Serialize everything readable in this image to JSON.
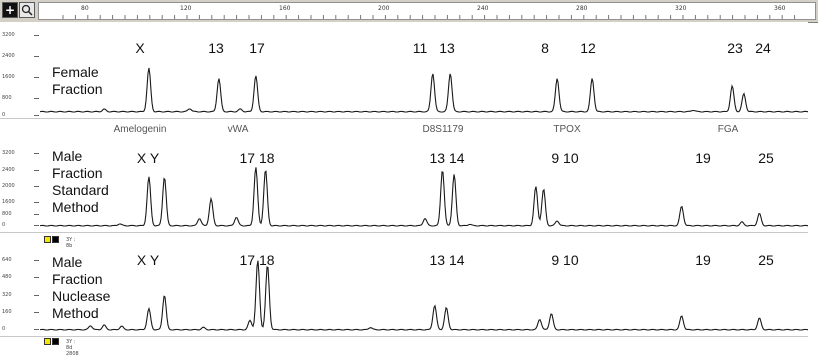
{
  "toolbar": {
    "plus_icon": "+",
    "zoom_icon": "magnifier-icon",
    "ruler_labels": [
      "80",
      "120",
      "160",
      "200",
      "240",
      "280",
      "320",
      "360"
    ]
  },
  "colors": {
    "trace": "#1a1a1a",
    "swatch_yellow": "#f4e600",
    "swatch_black": "#000000",
    "toolbar": "#d4d0c8"
  },
  "panels": [
    {
      "label": "Female\nFraction",
      "y_ticks": [
        "3200",
        "2400",
        "1600",
        "800",
        "0"
      ],
      "alleles": [
        "X",
        "13",
        "17",
        "11",
        "13",
        "8",
        "12",
        "23",
        "24"
      ],
      "max": 3200,
      "peaks": [
        [
          131,
          1700
        ],
        [
          167,
          1300
        ],
        [
          186,
          1400
        ],
        [
          277,
          1500
        ],
        [
          286,
          1500
        ],
        [
          341,
          1300
        ],
        [
          359,
          1300
        ],
        [
          431,
          1000
        ],
        [
          437,
          700
        ],
        [
          108,
          100
        ],
        [
          152,
          120
        ],
        [
          178,
          100
        ],
        [
          411,
          60
        ]
      ]
    },
    {
      "label": "Male\nFraction\nStandard\nMethod",
      "y_ticks": [
        "3200",
        "2400",
        "2000",
        "1600",
        "800",
        "0"
      ],
      "alleles": [
        "X Y",
        "17 18",
        "13 14",
        "9 10",
        "19",
        "25"
      ],
      "max": 3200,
      "peaks": [
        [
          131,
          2000
        ],
        [
          139,
          2000
        ],
        [
          163,
          1100
        ],
        [
          186,
          2400
        ],
        [
          191,
          2300
        ],
        [
          273,
          300
        ],
        [
          282,
          2300
        ],
        [
          288,
          2100
        ],
        [
          330,
          1600
        ],
        [
          334,
          1500
        ],
        [
          341,
          200
        ],
        [
          405,
          800
        ],
        [
          436,
          150
        ],
        [
          445,
          500
        ],
        [
          157,
          300
        ],
        [
          176,
          350
        ],
        [
          116,
          80
        ],
        [
          296,
          60
        ]
      ]
    },
    {
      "label": "Male\nFraction\nNuclease\nMethod",
      "y_ticks": [
        "640",
        "480",
        "320",
        "160",
        "0"
      ],
      "alleles": [
        "X Y",
        "17 18",
        "13 14",
        "9 10",
        "19",
        "25"
      ],
      "max": 640,
      "peaks": [
        [
          131,
          180
        ],
        [
          139,
          300
        ],
        [
          183,
          80
        ],
        [
          187,
          600
        ],
        [
          192,
          560
        ],
        [
          278,
          210
        ],
        [
          284,
          190
        ],
        [
          332,
          90
        ],
        [
          338,
          140
        ],
        [
          405,
          120
        ],
        [
          445,
          100
        ],
        [
          108,
          40
        ],
        [
          101,
          35
        ],
        [
          117,
          30
        ],
        [
          159,
          20
        ],
        [
          245,
          20
        ]
      ]
    }
  ],
  "loci": [
    "Amelogenin",
    "vWA",
    "D8S1179",
    "TPOX",
    "FGA"
  ],
  "status_strip": {
    "text": "3Y : 8b 2808"
  },
  "status_strip_2": {
    "text": "3Y : 8d 2808"
  }
}
